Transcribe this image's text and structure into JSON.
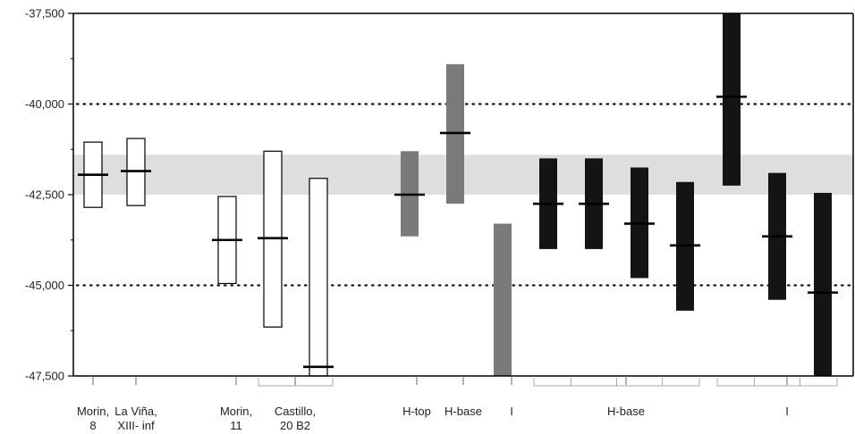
{
  "chart_data": {
    "type": "range-bar",
    "title": "",
    "xlabel": "",
    "ylabel": "",
    "ylim": [
      -47500,
      -37500
    ],
    "yticks": [
      -37500,
      -40000,
      -42500,
      -45000,
      -47500
    ],
    "ytick_labels": [
      "-37,500",
      "-40,000",
      "-42,500",
      "-45,000",
      "-47,500"
    ],
    "dotted_gridlines": [
      -40000,
      -45000
    ],
    "shaded_band": {
      "from": -42500,
      "to": -41400,
      "color": "#dedede"
    },
    "styles": {
      "open": {
        "fill": "#ffffff",
        "stroke": "#000000"
      },
      "grey": {
        "fill": "#7a7a7a",
        "stroke": "none"
      },
      "black": {
        "fill": "#141414",
        "stroke": "none"
      }
    },
    "bars": [
      {
        "style": "open",
        "low": -42850,
        "high": -41050,
        "mid": -41950
      },
      {
        "style": "open",
        "low": -42800,
        "high": -40950,
        "mid": -41850
      },
      {
        "style": "open",
        "low": -44950,
        "high": -42550,
        "mid": -43750
      },
      {
        "style": "open",
        "low": -46150,
        "high": -41300,
        "mid": -43700
      },
      {
        "style": "open",
        "low": -47500,
        "high": -42050,
        "mid": -47250
      },
      {
        "style": "grey",
        "low": -43650,
        "high": -41300,
        "mid": -42500
      },
      {
        "style": "grey",
        "low": -42750,
        "high": -38900,
        "mid": -40800
      },
      {
        "style": "grey",
        "low": -47500,
        "high": -43300,
        "mid": null
      },
      {
        "style": "black",
        "low": -44000,
        "high": -41500,
        "mid": -42750
      },
      {
        "style": "black",
        "low": -44000,
        "high": -41500,
        "mid": -42750
      },
      {
        "style": "black",
        "low": -44800,
        "high": -41750,
        "mid": -43300
      },
      {
        "style": "black",
        "low": -45700,
        "high": -42150,
        "mid": -43900
      },
      {
        "style": "black",
        "low": -42250,
        "high": -37500,
        "mid": -39800
      },
      {
        "style": "black",
        "low": -45400,
        "high": -41900,
        "mid": -43650
      },
      {
        "style": "black",
        "low": -47500,
        "high": -42450,
        "mid": -45200
      }
    ],
    "x_labels": [
      {
        "text": [
          "Morin,",
          "8"
        ]
      },
      {
        "text": [
          "La Viña,",
          "XIII- inf"
        ]
      },
      {
        "text": [
          "Morin,",
          "11"
        ]
      },
      {
        "text": [
          "Castillo,",
          "20 B2"
        ]
      },
      {
        "text": [
          "H-top"
        ]
      },
      {
        "text": [
          "H-base"
        ]
      },
      {
        "text": [
          "I"
        ]
      },
      {
        "text": [
          "H-base"
        ]
      },
      {
        "text": [
          "I"
        ]
      }
    ],
    "x_groups": [
      {
        "bars": [
          3,
          4
        ]
      },
      {
        "bars": [
          8,
          11
        ]
      },
      {
        "bars": [
          12,
          14
        ]
      }
    ]
  }
}
